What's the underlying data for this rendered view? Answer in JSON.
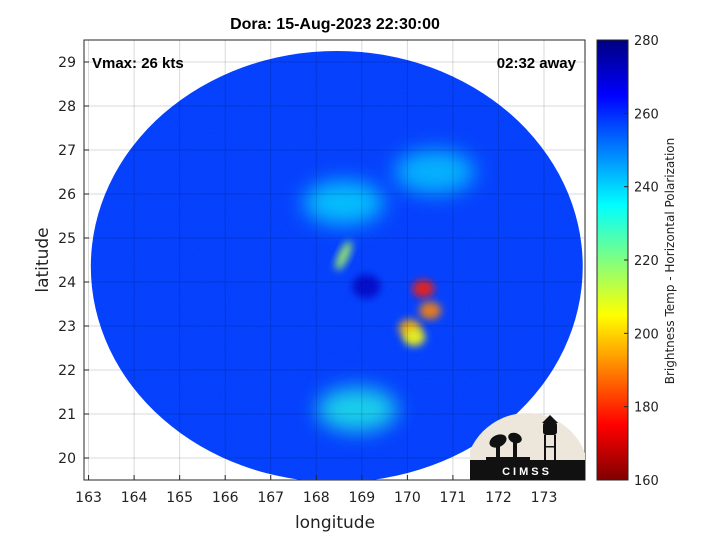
{
  "chart_data": {
    "type": "heatmap",
    "title": "Dora: 15-Aug-2023 22:30:00",
    "xlabel": "longitude",
    "ylabel": "latitude",
    "xlim": [
      162.9,
      173.9
    ],
    "ylim": [
      19.5,
      29.5
    ],
    "x_ticks": [
      "163",
      "164",
      "165",
      "166",
      "167",
      "168",
      "169",
      "170",
      "171",
      "172",
      "173"
    ],
    "y_ticks": [
      "20",
      "21",
      "22",
      "23",
      "24",
      "25",
      "26",
      "27",
      "28",
      "29"
    ],
    "grid": true,
    "annotations": {
      "vmax": "Vmax: 26 kts",
      "away": "02:32 away"
    },
    "colorbar": {
      "label": "Brightness Temp - Horizontal Polarization",
      "range": [
        160,
        280
      ],
      "ticks": [
        "160",
        "180",
        "200",
        "220",
        "240",
        "260",
        "280"
      ],
      "colormap": "jet"
    },
    "background_level": 258,
    "swath": {
      "center": [
        168.45,
        24.35
      ],
      "radius_lon": 5.4,
      "radius_lat": 4.9
    },
    "features": [
      {
        "name": "cold-core-1",
        "lon": 170.35,
        "lat": 23.85,
        "value": 178
      },
      {
        "name": "cold-core-2",
        "lon": 170.5,
        "lat": 23.35,
        "value": 190
      },
      {
        "name": "cold-core-3",
        "lon": 170.05,
        "lat": 22.95,
        "value": 195
      },
      {
        "name": "cold-core-4",
        "lon": 170.15,
        "lat": 22.75,
        "value": 205
      },
      {
        "name": "warm-spot",
        "lon": 169.1,
        "lat": 23.9,
        "value": 272
      },
      {
        "name": "streak",
        "lon": 168.6,
        "lat": 24.6,
        "value": 215
      },
      {
        "name": "band-north",
        "lon": 168.6,
        "lat": 25.8,
        "value": 238
      },
      {
        "name": "band-south",
        "lon": 168.9,
        "lat": 21.1,
        "value": 232
      },
      {
        "name": "band-east",
        "lon": 170.6,
        "lat": 26.5,
        "value": 240
      }
    ]
  },
  "logo": {
    "text": "CIMSS"
  }
}
